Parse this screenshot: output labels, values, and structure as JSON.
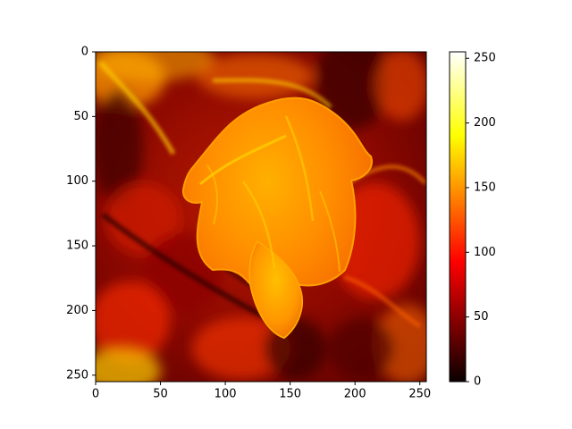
{
  "chart_data": {
    "type": "heatmap",
    "title": "",
    "xlabel": "",
    "ylabel": "",
    "colormap": "hot",
    "image_size": [
      256,
      256
    ],
    "xlim": [
      0,
      255
    ],
    "ylim": [
      255,
      0
    ],
    "x_ticks": [
      0,
      50,
      100,
      150,
      200,
      250
    ],
    "y_ticks": [
      0,
      50,
      100,
      150,
      200,
      250
    ],
    "x_tick_labels": [
      "0",
      "50",
      "100",
      "150",
      "200",
      "250"
    ],
    "y_tick_labels": [
      "0",
      "50",
      "100",
      "150",
      "200",
      "250"
    ],
    "colorbar": {
      "range": [
        0,
        255
      ],
      "ticks": [
        0,
        50,
        100,
        150,
        200,
        250
      ],
      "tick_labels": [
        "0",
        "50",
        "100",
        "150",
        "200",
        "250"
      ]
    },
    "description_values": {
      "background_level": 70,
      "leaf_level": 150
    }
  },
  "colors": {
    "axis": "#000000",
    "background": "#ffffff"
  }
}
